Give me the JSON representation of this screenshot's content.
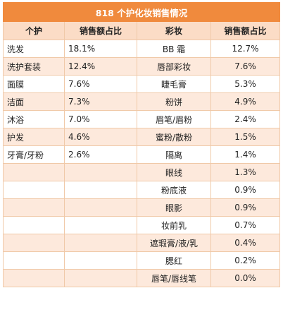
{
  "title": "818 个护化妆销售情况",
  "headers": {
    "personal_care": "个护",
    "personal_share": "销售额占比",
    "cosmetics": "彩妆",
    "cosmetics_share": "销售额占比"
  },
  "rows": [
    {
      "pc": "洗发",
      "pc_share": "18.1%",
      "cm": "BB 霜",
      "cm_share": "12.7%"
    },
    {
      "pc": "洗护套装",
      "pc_share": "12.4%",
      "cm": "唇部彩妆",
      "cm_share": "7.6%"
    },
    {
      "pc": "面膜",
      "pc_share": "7.6%",
      "cm": "睫毛膏",
      "cm_share": "5.3%"
    },
    {
      "pc": "洁面",
      "pc_share": "7.3%",
      "cm": "粉饼",
      "cm_share": "4.9%"
    },
    {
      "pc": "沐浴",
      "pc_share": "7.0%",
      "cm": "眉笔/眉粉",
      "cm_share": "2.4%"
    },
    {
      "pc": "护发",
      "pc_share": "4.6%",
      "cm": "蜜粉/散粉",
      "cm_share": "1.5%"
    },
    {
      "pc": "牙膏/牙粉",
      "pc_share": "2.6%",
      "cm": "隔离",
      "cm_share": "1.4%"
    },
    {
      "pc": "",
      "pc_share": "",
      "cm": "眼线",
      "cm_share": "1.3%"
    },
    {
      "pc": "",
      "pc_share": "",
      "cm": "粉底液",
      "cm_share": "0.9%"
    },
    {
      "pc": "",
      "pc_share": "",
      "cm": "眼影",
      "cm_share": "0.9%"
    },
    {
      "pc": "",
      "pc_share": "",
      "cm": "妆前乳",
      "cm_share": "0.7%"
    },
    {
      "pc": "",
      "pc_share": "",
      "cm": "遮瑕膏/液/乳",
      "cm_share": "0.4%"
    },
    {
      "pc": "",
      "pc_share": "",
      "cm": "腮红",
      "cm_share": "0.2%"
    },
    {
      "pc": "",
      "pc_share": "",
      "cm": "唇笔/唇线笔",
      "cm_share": "0.0%"
    }
  ]
}
